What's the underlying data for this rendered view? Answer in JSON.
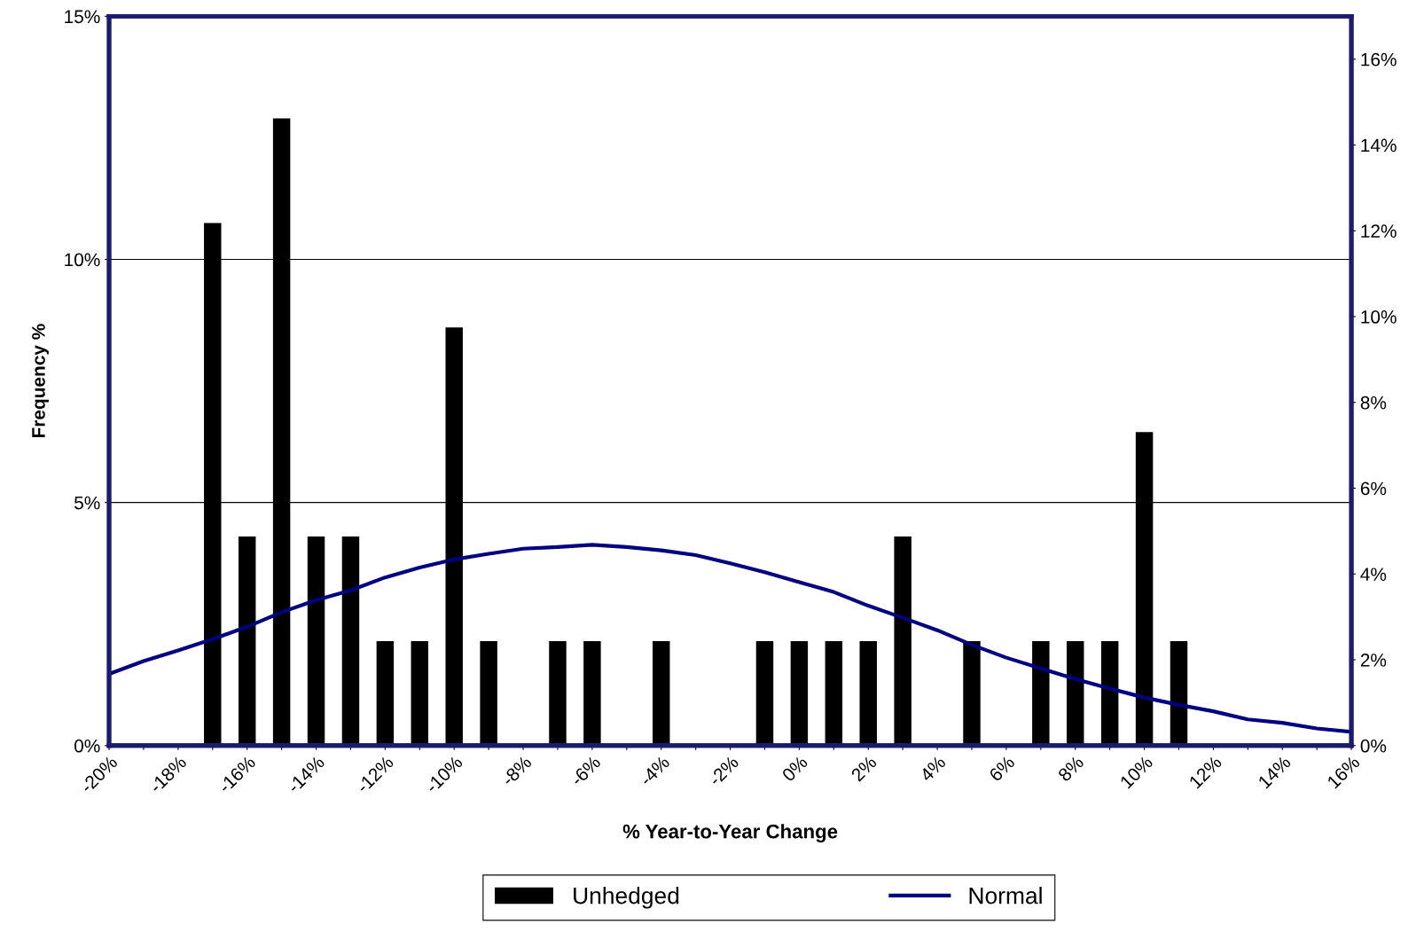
{
  "chart_data": {
    "type": "bar",
    "xlabel": "% Year-to-Year Change",
    "ylabel": "Frequency %",
    "categories": [
      "-20%",
      null,
      "-18%",
      null,
      "-16%",
      null,
      "-14%",
      null,
      "-12%",
      null,
      "-10%",
      null,
      "-8%",
      null,
      "-6%",
      null,
      "-4%",
      null,
      "-2%",
      null,
      "0%",
      null,
      "2%",
      null,
      "4%",
      null,
      "6%",
      null,
      "8%",
      null,
      "10%",
      null,
      "12%",
      null,
      "14%",
      null,
      "16%"
    ],
    "series": [
      {
        "name": "Unhedged",
        "color": "#000000",
        "values": [
          0,
          0,
          0,
          10.75,
          4.3,
          12.9,
          4.3,
          4.3,
          2.15,
          2.15,
          8.6,
          2.15,
          0,
          2.15,
          2.15,
          0,
          2.15,
          0,
          0,
          2.15,
          2.15,
          2.15,
          2.15,
          4.3,
          0,
          2.15,
          0,
          2.15,
          2.15,
          2.15,
          6.45,
          2.15,
          0,
          0,
          0,
          0,
          0
        ]
      },
      {
        "name": "Normal",
        "type": "line",
        "axis": "y2",
        "color": "#000080",
        "values": [
          1.67,
          1.97,
          2.22,
          2.48,
          2.77,
          3.11,
          3.39,
          3.62,
          3.92,
          4.15,
          4.34,
          4.47,
          4.59,
          4.63,
          4.68,
          4.63,
          4.55,
          4.44,
          4.25,
          4.04,
          3.81,
          3.58,
          3.26,
          2.98,
          2.69,
          2.35,
          2.05,
          1.8,
          1.55,
          1.33,
          1.12,
          0.95,
          0.8,
          0.61,
          0.53,
          0.4,
          0.32
        ]
      }
    ],
    "ylim": [
      0,
      15
    ],
    "yticks": [
      {
        "value": 0,
        "label": "0%"
      },
      {
        "value": 5,
        "label": "5%"
      },
      {
        "value": 10,
        "label": "10%"
      },
      {
        "value": 15,
        "label": "15%"
      }
    ],
    "y2lim": [
      0,
      17
    ],
    "y2ticks": [
      {
        "value": 0,
        "label": "0%"
      },
      {
        "value": 2,
        "label": "2%"
      },
      {
        "value": 4,
        "label": "4%"
      },
      {
        "value": 6,
        "label": "6%"
      },
      {
        "value": 8,
        "label": "8%"
      },
      {
        "value": 10,
        "label": "10%"
      },
      {
        "value": 12,
        "label": "12%"
      },
      {
        "value": 14,
        "label": "14%"
      },
      {
        "value": 16,
        "label": "16%"
      }
    ],
    "grid": "y",
    "legend": "bottom",
    "marker": "none",
    "line_style": "solid"
  }
}
